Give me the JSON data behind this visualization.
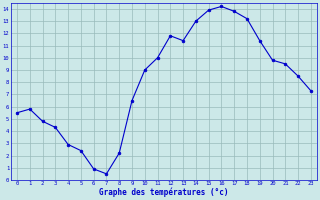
{
  "x": [
    0,
    1,
    2,
    3,
    4,
    5,
    6,
    7,
    8,
    9,
    10,
    11,
    12,
    13,
    14,
    15,
    16,
    17,
    18,
    19,
    20,
    21,
    22,
    23
  ],
  "y": [
    5.5,
    5.8,
    4.8,
    4.3,
    2.9,
    2.4,
    0.9,
    0.5,
    2.2,
    6.5,
    9.0,
    10.0,
    11.8,
    11.4,
    13.0,
    13.9,
    14.2,
    13.8,
    13.2,
    11.4,
    9.8,
    9.5,
    8.5,
    7.3
  ],
  "line_color": "#0000cc",
  "marker_color": "#0000cc",
  "bg_color": "#cce8e8",
  "grid_color": "#99bbbb",
  "xlabel": "Graphe des températures (°c)",
  "xlabel_color": "#0000cc",
  "tick_color": "#0000cc",
  "xlim": [
    -0.5,
    23.5
  ],
  "ylim": [
    0,
    14.5
  ],
  "yticks": [
    0,
    1,
    2,
    3,
    4,
    5,
    6,
    7,
    8,
    9,
    10,
    11,
    12,
    13,
    14
  ],
  "xticks": [
    0,
    1,
    2,
    3,
    4,
    5,
    6,
    7,
    8,
    9,
    10,
    11,
    12,
    13,
    14,
    15,
    16,
    17,
    18,
    19,
    20,
    21,
    22,
    23
  ],
  "fig_bg": "#cce8e8"
}
